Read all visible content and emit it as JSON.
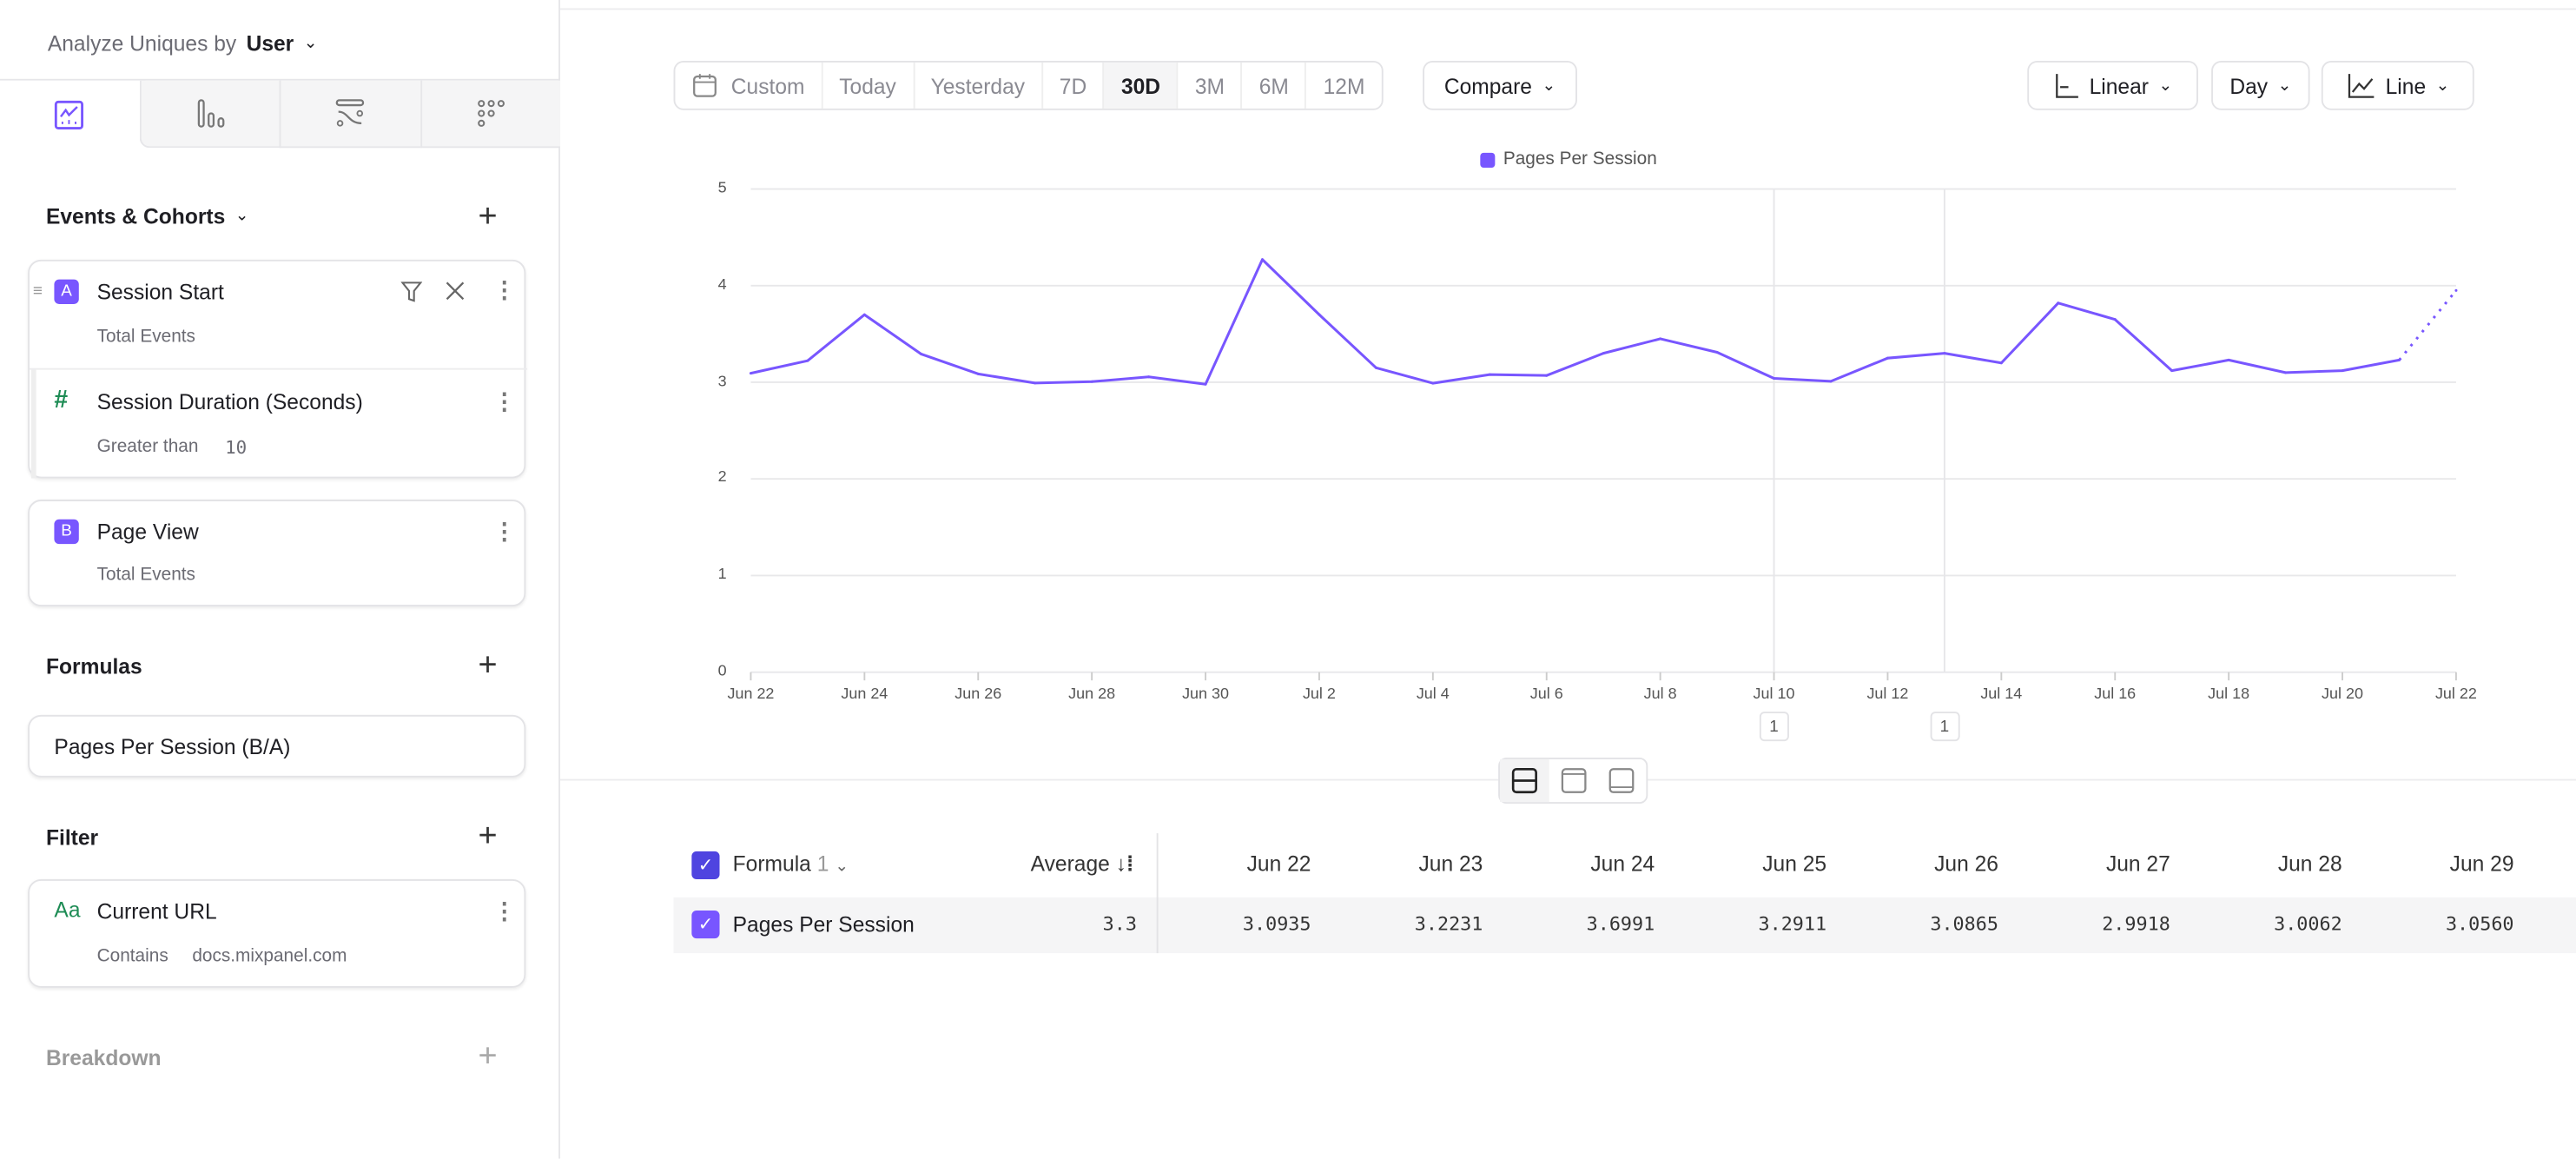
{
  "sidebar": {
    "analyze_label": "Analyze Uniques by",
    "analyze_value": "User",
    "tabs": [
      {
        "icon": "insights-chart-icon",
        "active": true
      },
      {
        "icon": "funnels-bar-icon",
        "active": false
      },
      {
        "icon": "flows-icon",
        "active": false
      },
      {
        "icon": "retention-grid-icon",
        "active": false
      }
    ],
    "events_heading": "Events & Cohorts",
    "events": [
      {
        "badge": "A",
        "name": "Session Start",
        "measure": "Total Events",
        "filter": {
          "name": "Session Duration (Seconds)",
          "operator": "Greater than",
          "value": "10"
        }
      },
      {
        "badge": "B",
        "name": "Page View",
        "measure": "Total Events"
      }
    ],
    "formulas_heading": "Formulas",
    "formula": "Pages Per Session (B/A)",
    "filter_heading": "Filter",
    "filter": {
      "type_icon": "Aa",
      "name": "Current URL",
      "operator": "Contains",
      "value": "docs.mixpanel.com"
    },
    "breakdown_heading": "Breakdown"
  },
  "toolbar": {
    "date_ranges": [
      "Custom",
      "Today",
      "Yesterday",
      "7D",
      "30D",
      "3M",
      "6M",
      "12M"
    ],
    "selected_range": "30D",
    "compare": "Compare",
    "scale": "Linear",
    "interval": "Day",
    "chart_type": "Line"
  },
  "colors": {
    "accent": "#7856ff",
    "checkbox_header": "#4f44e0",
    "green": "#1e8c55"
  },
  "chart_data": {
    "type": "line",
    "legend": "top",
    "grid": true,
    "ylim": [
      0,
      5
    ],
    "y_ticks": [
      "0",
      "1",
      "2",
      "3",
      "4",
      "5"
    ],
    "x_ticks": [
      "Jun 22",
      "Jun 24",
      "Jun 26",
      "Jun 28",
      "Jun 30",
      "Jul 2",
      "Jul 4",
      "Jul 6",
      "Jul 8",
      "Jul 10",
      "Jul 12",
      "Jul 14",
      "Jul 16",
      "Jul 18",
      "Jul 20",
      "Jul 22"
    ],
    "x": [
      "Jun 22",
      "Jun 23",
      "Jun 24",
      "Jun 25",
      "Jun 26",
      "Jun 27",
      "Jun 28",
      "Jun 29",
      "Jun 30",
      "Jul 1",
      "Jul 2",
      "Jul 3",
      "Jul 4",
      "Jul 5",
      "Jul 6",
      "Jul 7",
      "Jul 8",
      "Jul 9",
      "Jul 10",
      "Jul 11",
      "Jul 12",
      "Jul 13",
      "Jul 14",
      "Jul 15",
      "Jul 16",
      "Jul 17",
      "Jul 18",
      "Jul 19",
      "Jul 20",
      "Jul 21",
      "Jul 22"
    ],
    "series": [
      {
        "name": "Pages Per Session",
        "color": "#7856ff",
        "values": [
          3.0935,
          3.2231,
          3.6991,
          3.2911,
          3.0865,
          2.9918,
          3.0062,
          3.056,
          2.98,
          4.27,
          3.7,
          3.15,
          2.99,
          3.08,
          3.07,
          3.3,
          3.45,
          3.31,
          3.04,
          3.01,
          3.25,
          3.3,
          3.2,
          3.82,
          3.65,
          3.12,
          3.23,
          3.1,
          3.12,
          3.23,
          3.95
        ],
        "partial_last_point": true
      }
    ],
    "annotations": [
      {
        "x": "Jul 10",
        "label": "1"
      },
      {
        "x": "Jul 13",
        "label": "1"
      }
    ]
  },
  "table": {
    "group_label": "Formula",
    "group_count": "1",
    "average_label": "Average",
    "columns": [
      "Jun 22",
      "Jun 23",
      "Jun 24",
      "Jun 25",
      "Jun 26",
      "Jun 27",
      "Jun 28",
      "Jun 29"
    ],
    "rows": [
      {
        "name": "Pages Per Session",
        "average": "3.3",
        "values": [
          "3.0935",
          "3.2231",
          "3.6991",
          "3.2911",
          "3.0865",
          "2.9918",
          "3.0062",
          "3.0560"
        ]
      }
    ]
  }
}
